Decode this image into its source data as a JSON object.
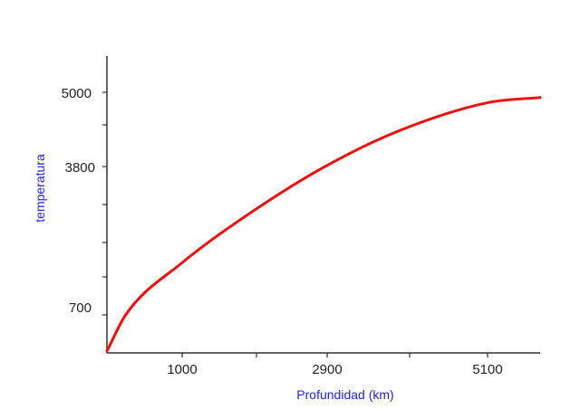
{
  "chart_data": {
    "type": "line",
    "title": "",
    "xlabel": "Profundidad (km)",
    "ylabel": "temperatura",
    "color": "#ee1111",
    "axis_color": "#333333",
    "label_color": "#2222dd",
    "x_axis_labels": [
      "1000",
      "2900",
      "5100"
    ],
    "y_axis_labels": [
      "5000",
      "3800",
      "700"
    ],
    "series": [
      {
        "x": [
          0,
          250,
          1000,
          1900,
          2900,
          3900,
          5100,
          5800
        ],
        "y": [
          0,
          700,
          1700,
          2650,
          3550,
          4250,
          4800,
          4900
        ]
      }
    ],
    "grid": false,
    "legend": "none"
  }
}
